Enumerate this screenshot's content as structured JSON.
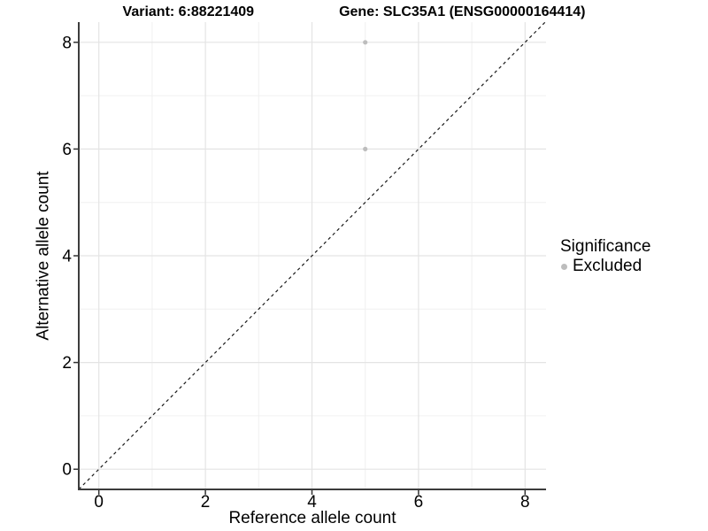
{
  "titles": {
    "variant": "Variant: 6:88221409",
    "gene": "Gene: SLC35A1 (ENSG00000164414)"
  },
  "chart_data": {
    "type": "scatter",
    "title": "Variant: 6:88221409   Gene: SLC35A1 (ENSG00000164414)",
    "xlabel": "Reference allele count",
    "ylabel": "Alternative allele count",
    "xlim": [
      -0.38,
      8.39
    ],
    "ylim": [
      -0.38,
      8.38
    ],
    "x_ticks": [
      0,
      2,
      4,
      6,
      8
    ],
    "y_ticks": [
      0,
      2,
      4,
      6,
      8
    ],
    "x_minor_ticks": [
      1,
      3,
      5,
      7
    ],
    "y_minor_ticks": [
      1,
      3,
      5,
      7
    ],
    "grid": true,
    "series": [
      {
        "name": "Excluded",
        "color": "#bdbdbd",
        "points": [
          {
            "x": 5,
            "y": 8
          },
          {
            "x": 5,
            "y": 6
          }
        ]
      }
    ],
    "reference_line": {
      "type": "identity",
      "slope": 1,
      "intercept": 0,
      "style": "dashed"
    },
    "legend": {
      "title": "Significance",
      "position": "right",
      "items": [
        {
          "label": "Excluded",
          "color": "#bdbdbd"
        }
      ]
    }
  },
  "colors": {
    "point": "#bdbdbd",
    "grid_major": "#e4e4e4",
    "grid_minor": "#f0f0f0",
    "axis_line": "#3c3c3c",
    "tick_mark": "#333333",
    "reference_line": "#1a1a1a",
    "text": "#000000",
    "background": "#ffffff"
  }
}
